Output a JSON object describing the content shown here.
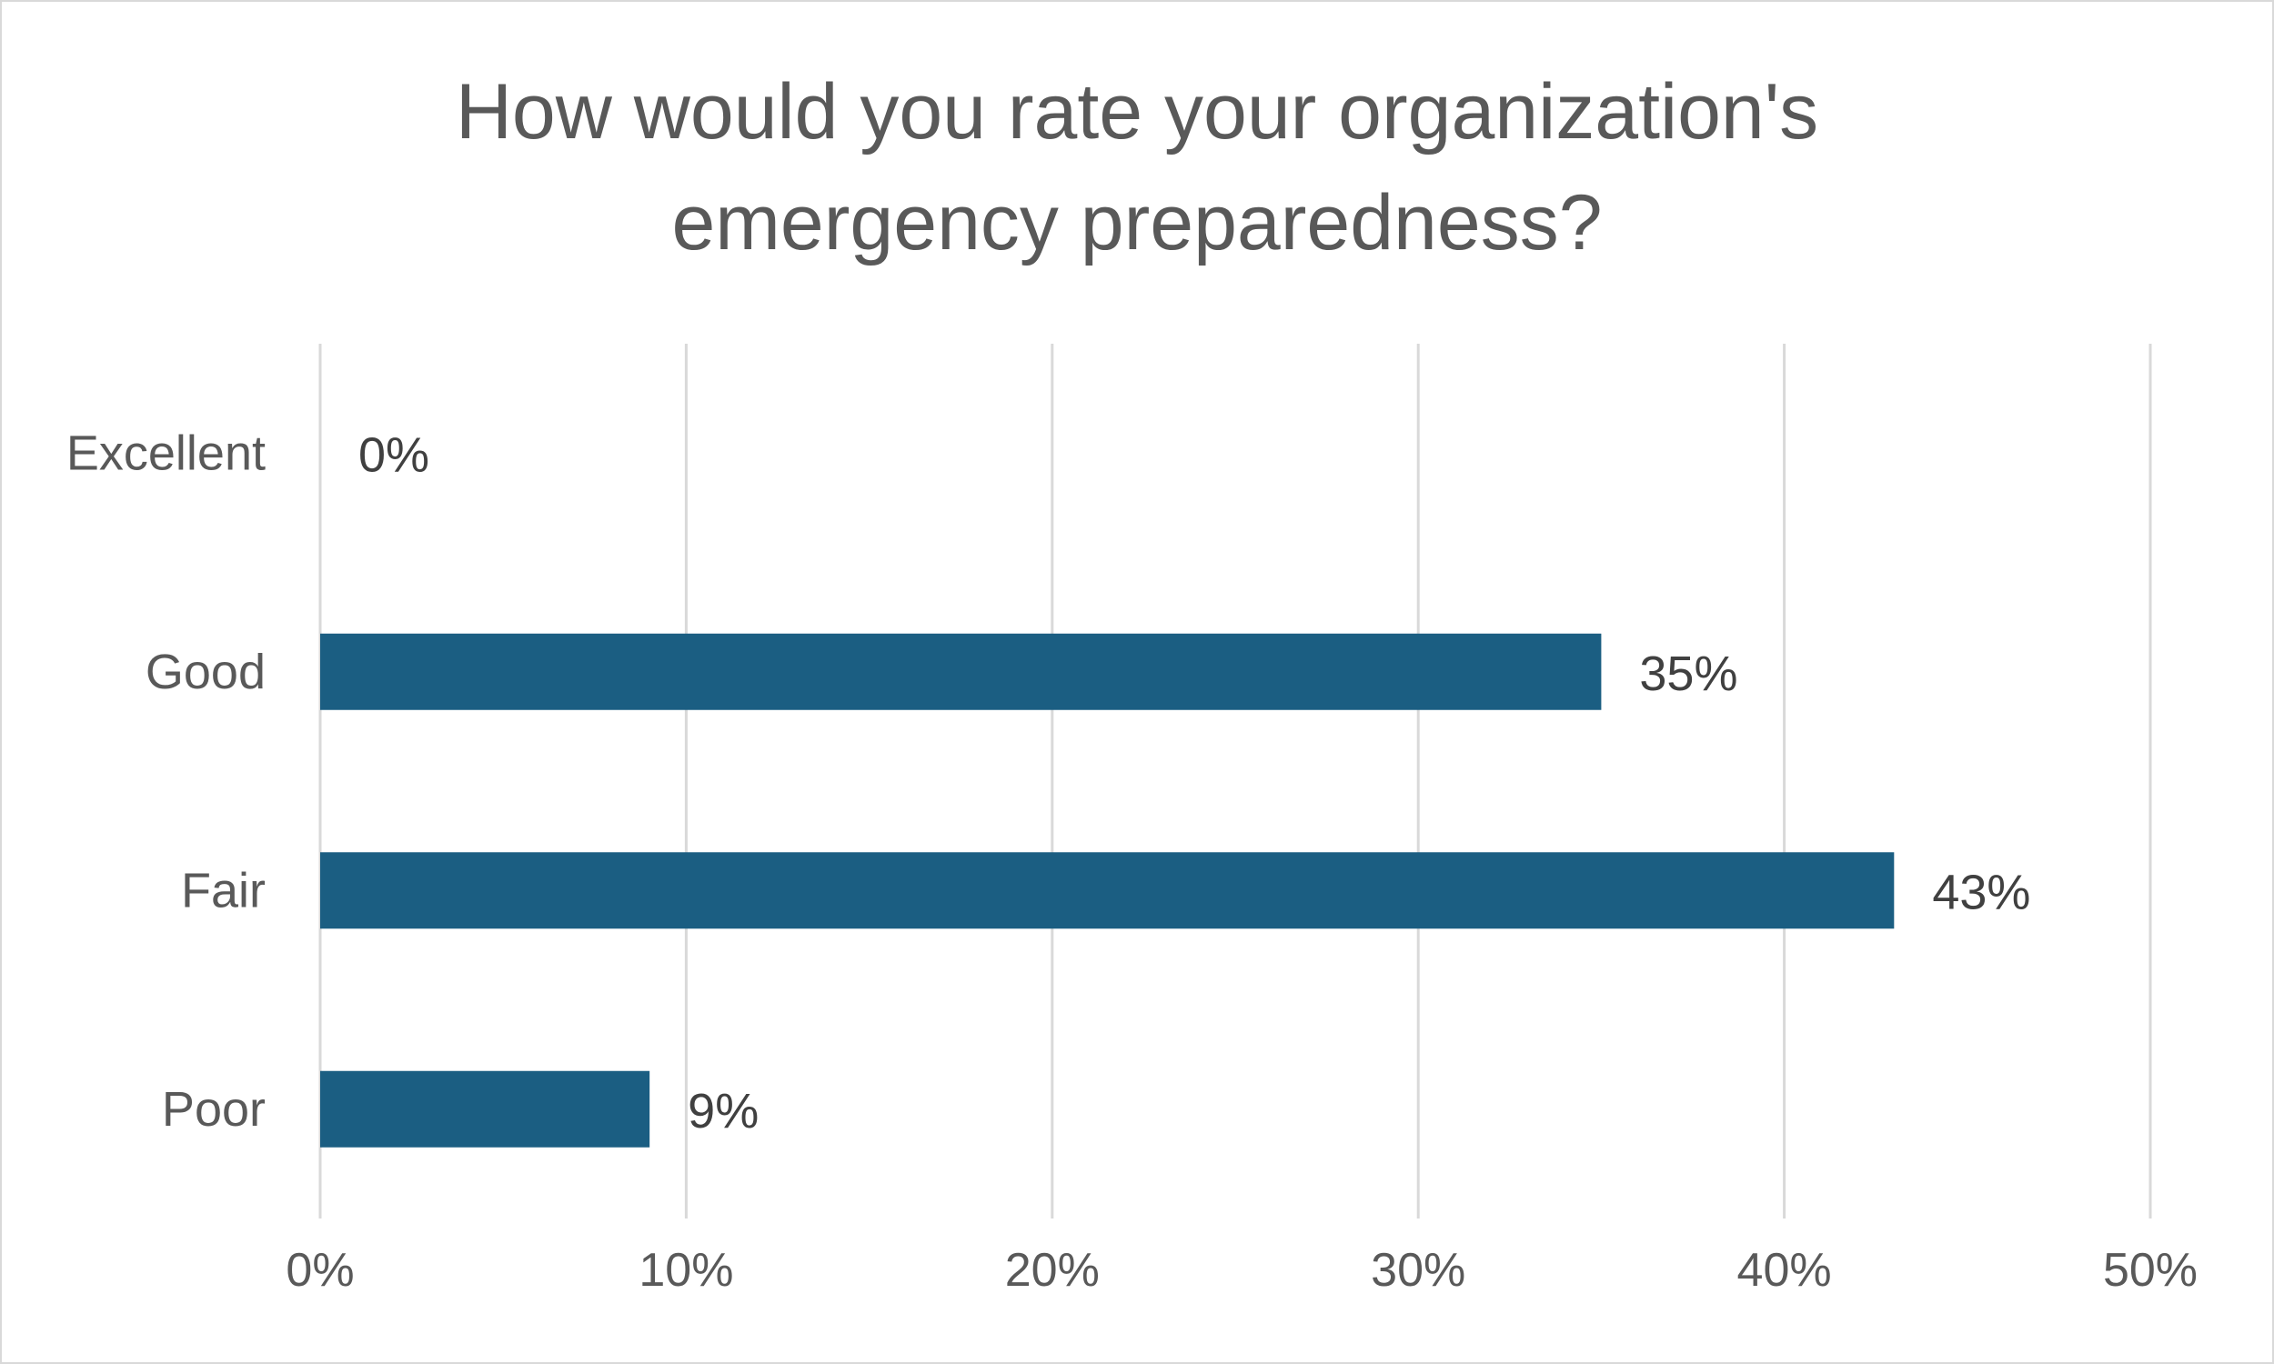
{
  "title_lines": [
    "How would you rate your organization's",
    "emergency preparedness?"
  ],
  "chart_data": {
    "type": "bar",
    "orientation": "horizontal",
    "title": "How would you rate your organization's emergency preparedness?",
    "categories": [
      "Excellent",
      "Good",
      "Fair",
      "Poor"
    ],
    "values": [
      0,
      35,
      43,
      9
    ],
    "value_labels": [
      "0%",
      "35%",
      "43%",
      "9%"
    ],
    "xlim": [
      0,
      50
    ],
    "xticks": [
      0,
      10,
      20,
      30,
      40,
      50
    ],
    "xtick_labels": [
      "0%",
      "10%",
      "20%",
      "30%",
      "40%",
      "50%"
    ],
    "xlabel": "",
    "ylabel": "",
    "grid": "vertical",
    "bar_color": "#1b5e82",
    "grid_color": "#d9d9d9"
  }
}
